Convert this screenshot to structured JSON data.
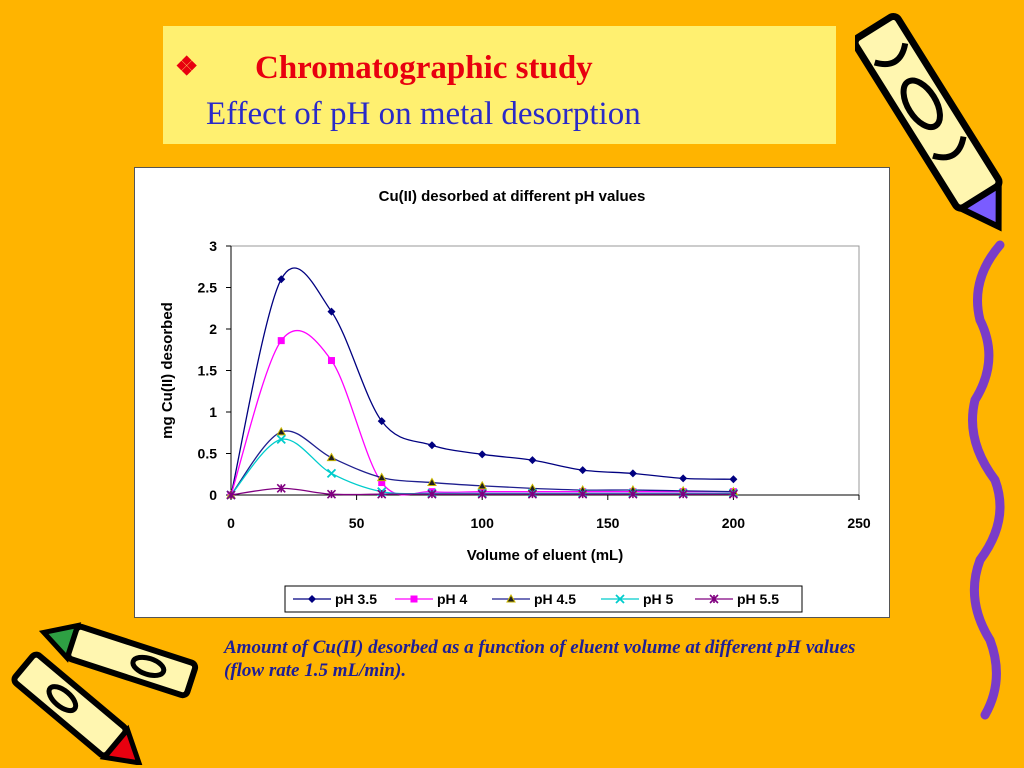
{
  "slide": {
    "bullet": "❖",
    "title": "Chromatographic study",
    "subtitle": "Effect of pH on metal desorption",
    "caption": "Amount of Cu(II) desorbed as a function of eluent volume at different pH values (flow rate 1.5 mL/min).",
    "colors": {
      "background": "#FFB400",
      "title_box": "#FFF070",
      "title": "#E8000F",
      "subtitle": "#2A2AC8",
      "caption": "#1E1E96"
    }
  },
  "chart_data": {
    "type": "scatter",
    "title": "Cu(II) desorbed at different pH values",
    "xlabel": "Volume of eluent (mL)",
    "ylabel": "mg Cu(II) desorbed",
    "xlim": [
      0,
      250
    ],
    "ylim": [
      0,
      3
    ],
    "xticks": [
      "0",
      "50",
      "100",
      "150",
      "200",
      "250"
    ],
    "yticks": [
      "0",
      "0.5",
      "1",
      "1.5",
      "2",
      "2.5",
      "3"
    ],
    "grid": false,
    "smooth_lines": true,
    "legend_position": "bottom",
    "x": [
      0,
      20,
      40,
      60,
      80,
      100,
      120,
      140,
      160,
      180,
      200
    ],
    "series": [
      {
        "name": "pH 3.5",
        "color": "#000080",
        "marker": "diamond",
        "values": [
          0,
          2.6,
          2.21,
          0.89,
          0.6,
          0.49,
          0.42,
          0.3,
          0.26,
          0.2,
          0.19
        ]
      },
      {
        "name": "pH 4",
        "color": "#FF00FF",
        "marker": "square",
        "values": [
          0,
          1.86,
          1.62,
          0.15,
          0.04,
          0.04,
          0.04,
          0.04,
          0.04,
          0.04,
          0.04
        ]
      },
      {
        "name": "pH 4.5",
        "color": "#1F1F8F",
        "marker": "triangle",
        "values": [
          0,
          0.76,
          0.45,
          0.21,
          0.15,
          0.11,
          0.08,
          0.06,
          0.06,
          0.05,
          0.04
        ]
      },
      {
        "name": "pH 5",
        "color": "#00CCCC",
        "marker": "x",
        "values": [
          0,
          0.67,
          0.26,
          0.04,
          0.02,
          0.02,
          0.02,
          0.02,
          0.02,
          0.02,
          0.02
        ]
      },
      {
        "name": "pH 5.5",
        "color": "#800080",
        "marker": "star",
        "values": [
          0,
          0.08,
          0.01,
          0.01,
          0.01,
          0.01,
          0.01,
          0.01,
          0.01,
          0.01,
          0.01
        ]
      }
    ]
  }
}
